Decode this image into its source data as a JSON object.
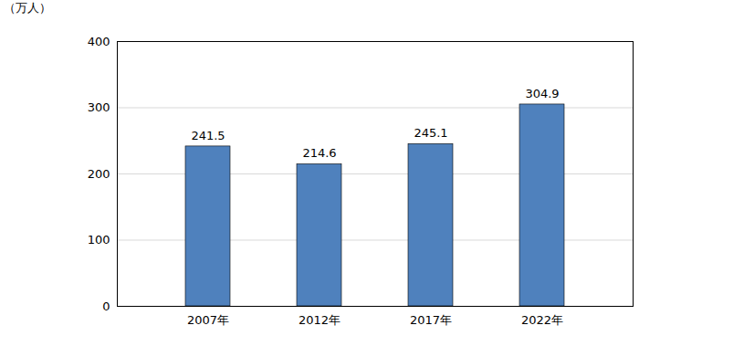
{
  "chart_data": {
    "type": "bar",
    "ylabel": "（万人）",
    "categories": [
      "2007年",
      "2012年",
      "2017年",
      "2022年"
    ],
    "values": [
      241.5,
      214.6,
      245.1,
      304.9
    ],
    "color": "#4f81bd",
    "ylim": [
      0,
      400
    ],
    "yticks": [
      0,
      100,
      200,
      300,
      400
    ],
    "grid": true,
    "data_labels": true
  }
}
